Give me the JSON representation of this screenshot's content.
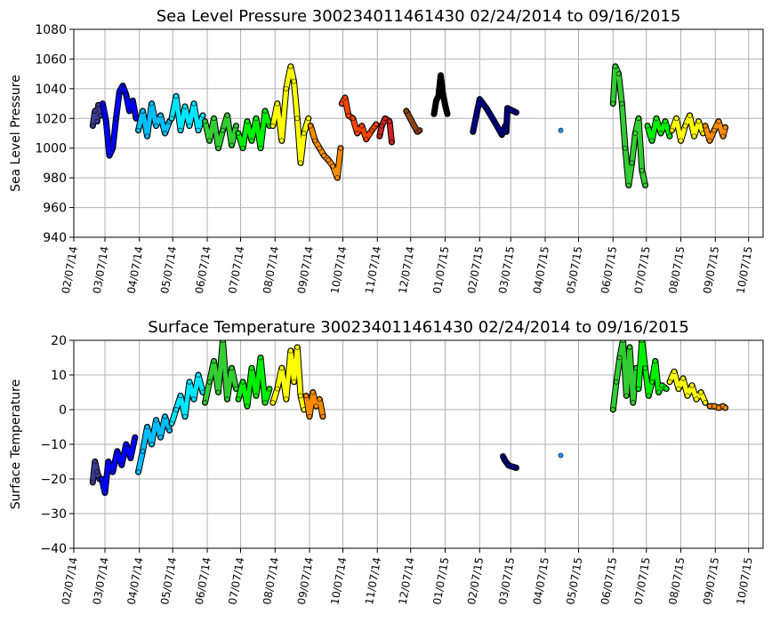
{
  "chart_data": [
    {
      "type": "scatter",
      "title": "Sea Level Pressure 300234011461430  02/24/2014 to 09/16/2015",
      "xlabel": "",
      "ylabel": "Sea Level Pressure",
      "ylim": [
        940,
        1080
      ],
      "yticks": [
        940,
        960,
        980,
        1000,
        1020,
        1040,
        1060,
        1080
      ],
      "xticks": [
        "02/07/14",
        "03/07/14",
        "04/07/14",
        "05/07/14",
        "06/07/14",
        "07/07/14",
        "08/07/14",
        "09/07/14",
        "10/07/14",
        "11/07/14",
        "12/07/14",
        "01/07/15",
        "02/07/15",
        "03/07/15",
        "04/07/15",
        "05/07/15",
        "06/07/15",
        "07/07/15",
        "08/07/15",
        "09/07/15",
        "10/07/15"
      ],
      "xlim": [
        "2014-02-07",
        "2015-10-20"
      ],
      "grid": true,
      "series": [
        {
          "color": "#3b3b8f",
          "x": [
            "2014-02-24",
            "2014-02-26",
            "2014-02-28",
            "2014-03-01",
            "2014-03-03"
          ],
          "y": [
            1015,
            1025,
            1018,
            1029,
            1022
          ]
        },
        {
          "color": "#0000ff",
          "x": [
            "2014-03-05",
            "2014-03-08",
            "2014-03-11",
            "2014-03-14",
            "2014-03-17",
            "2014-03-20",
            "2014-03-23",
            "2014-03-26",
            "2014-03-29",
            "2014-04-01",
            "2014-04-04"
          ],
          "y": [
            1030,
            1018,
            995,
            1000,
            1020,
            1038,
            1042,
            1036,
            1025,
            1032,
            1020
          ]
        },
        {
          "color": "#00bfff",
          "x": [
            "2014-04-06",
            "2014-04-10",
            "2014-04-14",
            "2014-04-18",
            "2014-04-22",
            "2014-04-26",
            "2014-04-30",
            "2014-05-04"
          ],
          "y": [
            1012,
            1025,
            1008,
            1030,
            1015,
            1022,
            1010,
            1018
          ]
        },
        {
          "color": "#00e5ff",
          "x": [
            "2014-05-06",
            "2014-05-10",
            "2014-05-14",
            "2014-05-18",
            "2014-05-22",
            "2014-05-26",
            "2014-05-30",
            "2014-06-03"
          ],
          "y": [
            1020,
            1035,
            1012,
            1028,
            1015,
            1030,
            1012,
            1022
          ]
        },
        {
          "color": "#32cd32",
          "x": [
            "2014-06-05",
            "2014-06-09",
            "2014-06-13",
            "2014-06-17",
            "2014-06-21",
            "2014-06-25",
            "2014-06-29",
            "2014-07-03"
          ],
          "y": [
            1018,
            1005,
            1020,
            1000,
            1012,
            1022,
            1002,
            1015
          ]
        },
        {
          "color": "#00ee00",
          "x": [
            "2014-07-05",
            "2014-07-09",
            "2014-07-13",
            "2014-07-17",
            "2014-07-21",
            "2014-07-25",
            "2014-07-29",
            "2014-08-02"
          ],
          "y": [
            1010,
            1000,
            1018,
            1005,
            1020,
            1000,
            1025,
            1015
          ]
        },
        {
          "color": "#ffff00",
          "x": [
            "2014-08-05",
            "2014-08-09",
            "2014-08-13",
            "2014-08-17",
            "2014-08-21",
            "2014-08-24",
            "2014-08-27",
            "2014-08-30",
            "2014-09-02",
            "2014-09-06"
          ],
          "y": [
            1015,
            1030,
            1005,
            1040,
            1055,
            1045,
            1020,
            990,
            1010,
            1020
          ]
        },
        {
          "color": "#ff8c00",
          "x": [
            "2014-09-08",
            "2014-09-12",
            "2014-09-16",
            "2014-09-20",
            "2014-09-24",
            "2014-09-28",
            "2014-10-02",
            "2014-10-05"
          ],
          "y": [
            1015,
            1005,
            1000,
            995,
            992,
            988,
            980,
            1000
          ]
        },
        {
          "color": "#ff4500",
          "x": [
            "2014-10-06",
            "2014-10-09",
            "2014-10-12",
            "2014-10-16",
            "2014-10-20",
            "2014-10-24",
            "2014-10-28",
            "2014-11-02",
            "2014-11-06"
          ],
          "y": [
            1030,
            1034,
            1022,
            1020,
            1010,
            1015,
            1006,
            1012,
            1016
          ]
        },
        {
          "color": "#cc2222",
          "x": [
            "2014-11-09",
            "2014-11-11",
            "2014-11-14",
            "2014-11-18",
            "2014-11-20"
          ],
          "y": [
            1008,
            1015,
            1020,
            1018,
            1004
          ]
        },
        {
          "color": "#8b4513",
          "x": [
            "2014-12-03",
            "2014-12-13",
            "2014-12-15"
          ],
          "y": [
            1025,
            1011,
            1012
          ]
        },
        {
          "color": "#000000",
          "x": [
            "2014-12-28",
            "2014-12-30",
            "2015-01-01",
            "2015-01-03",
            "2015-01-05",
            "2015-01-07",
            "2015-01-09"
          ],
          "y": [
            1023,
            1032,
            1035,
            1049,
            1037,
            1029,
            1023
          ]
        },
        {
          "color": "#000080",
          "x": [
            "2015-02-01",
            "2015-02-07",
            "2015-02-13",
            "2015-02-21",
            "2015-02-27",
            "2015-03-02",
            "2015-03-03",
            "2015-03-04",
            "2015-03-12"
          ],
          "y": [
            1011,
            1033,
            1027,
            1017,
            1009,
            1015,
            1011,
            1027,
            1024
          ]
        },
        {
          "color": "#1e90ff",
          "x": [
            "2015-04-21"
          ],
          "y": [
            1012
          ]
        },
        {
          "color": "#32cd32",
          "x": [
            "2015-06-07",
            "2015-06-09",
            "2015-06-12",
            "2015-06-15",
            "2015-06-18",
            "2015-06-21",
            "2015-06-24",
            "2015-06-27",
            "2015-06-30",
            "2015-07-03",
            "2015-07-06"
          ],
          "y": [
            1030,
            1055,
            1050,
            1030,
            1000,
            975,
            990,
            1010,
            1020,
            985,
            975
          ]
        },
        {
          "color": "#00ee00",
          "x": [
            "2015-07-08",
            "2015-07-12",
            "2015-07-16",
            "2015-07-20",
            "2015-07-24",
            "2015-07-28"
          ],
          "y": [
            1015,
            1005,
            1020,
            1010,
            1018,
            1008
          ]
        },
        {
          "color": "#ffff00",
          "x": [
            "2015-07-30",
            "2015-08-03",
            "2015-08-07",
            "2015-08-11",
            "2015-08-15",
            "2015-08-19",
            "2015-08-23",
            "2015-08-27"
          ],
          "y": [
            1012,
            1020,
            1005,
            1015,
            1022,
            1008,
            1018,
            1010
          ]
        },
        {
          "color": "#ff8c00",
          "x": [
            "2015-08-29",
            "2015-09-02",
            "2015-09-06",
            "2015-09-10",
            "2015-09-14",
            "2015-09-16"
          ],
          "y": [
            1015,
            1005,
            1012,
            1018,
            1008,
            1014
          ]
        }
      ]
    },
    {
      "type": "scatter",
      "title": "Surface Temperature 300234011461430  02/24/2014 to 09/16/2015",
      "xlabel": "",
      "ylabel": "Surface Temperature",
      "ylim": [
        -40,
        20
      ],
      "yticks": [
        -40,
        -30,
        -20,
        -10,
        0,
        10,
        20
      ],
      "ytick_labels": [
        "−40",
        "−30",
        "−20",
        "−10",
        "0",
        "10",
        "20"
      ],
      "xticks": [
        "02/07/14",
        "03/07/14",
        "04/07/14",
        "05/07/14",
        "06/07/14",
        "07/07/14",
        "08/07/14",
        "09/07/14",
        "10/07/14",
        "11/07/14",
        "12/07/14",
        "01/07/15",
        "02/07/15",
        "03/07/15",
        "04/07/15",
        "05/07/15",
        "06/07/15",
        "07/07/15",
        "08/07/15",
        "09/07/15",
        "10/07/15"
      ],
      "xlim": [
        "2014-02-07",
        "2015-10-20"
      ],
      "grid": true,
      "series": [
        {
          "color": "#3b3b8f",
          "x": [
            "2014-02-24",
            "2014-02-26",
            "2014-02-28",
            "2014-03-02"
          ],
          "y": [
            -21,
            -15,
            -18,
            -20
          ]
        },
        {
          "color": "#0000ff",
          "x": [
            "2014-03-04",
            "2014-03-07",
            "2014-03-10",
            "2014-03-14",
            "2014-03-18",
            "2014-03-22",
            "2014-03-26",
            "2014-03-30",
            "2014-04-03"
          ],
          "y": [
            -20,
            -24,
            -15,
            -18,
            -12,
            -16,
            -10,
            -14,
            -8
          ]
        },
        {
          "color": "#00bfff",
          "x": [
            "2014-04-06",
            "2014-04-10",
            "2014-04-14",
            "2014-04-18",
            "2014-04-22",
            "2014-04-26",
            "2014-04-30",
            "2014-05-04"
          ],
          "y": [
            -18,
            -12,
            -5,
            -10,
            -3,
            -8,
            -2,
            -6
          ]
        },
        {
          "color": "#00e5ff",
          "x": [
            "2014-05-06",
            "2014-05-10",
            "2014-05-14",
            "2014-05-18",
            "2014-05-22",
            "2014-05-26",
            "2014-05-30",
            "2014-06-03"
          ],
          "y": [
            -4,
            0,
            4,
            -2,
            8,
            3,
            10,
            5
          ]
        },
        {
          "color": "#32cd32",
          "x": [
            "2014-06-05",
            "2014-06-09",
            "2014-06-13",
            "2014-06-17",
            "2014-06-21",
            "2014-06-25",
            "2014-06-29",
            "2014-07-03"
          ],
          "y": [
            2,
            8,
            14,
            5,
            20,
            3,
            12,
            6
          ]
        },
        {
          "color": "#00ee00",
          "x": [
            "2014-07-05",
            "2014-07-09",
            "2014-07-13",
            "2014-07-17",
            "2014-07-21",
            "2014-07-25",
            "2014-07-29",
            "2014-08-02"
          ],
          "y": [
            3,
            8,
            1,
            12,
            4,
            15,
            2,
            6
          ]
        },
        {
          "color": "#ffff00",
          "x": [
            "2014-08-05",
            "2014-08-09",
            "2014-08-13",
            "2014-08-17",
            "2014-08-21",
            "2014-08-24",
            "2014-08-27",
            "2014-08-30",
            "2014-09-02"
          ],
          "y": [
            2,
            6,
            12,
            3,
            17,
            8,
            18,
            4,
            0
          ]
        },
        {
          "color": "#ff8c00",
          "x": [
            "2014-09-04",
            "2014-09-07",
            "2014-09-10",
            "2014-09-13",
            "2014-09-16",
            "2014-09-19"
          ],
          "y": [
            4,
            -2,
            5,
            1,
            3,
            -2
          ]
        },
        {
          "color": "#000080",
          "x": [
            "2015-02-28",
            "2015-03-02",
            "2015-03-04",
            "2015-03-05",
            "2015-03-12"
          ],
          "y": [
            -13.5,
            -14.8,
            -15.6,
            -16.1,
            -16.8
          ]
        },
        {
          "color": "#1e90ff",
          "x": [
            "2015-04-21"
          ],
          "y": [
            -13.2
          ]
        },
        {
          "color": "#32cd32",
          "x": [
            "2015-06-07",
            "2015-06-10",
            "2015-06-13",
            "2015-06-16",
            "2015-06-19",
            "2015-06-22",
            "2015-06-25",
            "2015-06-28"
          ],
          "y": [
            0,
            8,
            15,
            20,
            4,
            18,
            2,
            12
          ]
        },
        {
          "color": "#00ee00",
          "x": [
            "2015-06-30",
            "2015-07-03",
            "2015-07-06",
            "2015-07-09",
            "2015-07-12",
            "2015-07-15",
            "2015-07-18",
            "2015-07-21",
            "2015-07-25"
          ],
          "y": [
            6,
            20,
            12,
            4,
            8,
            14,
            5,
            7,
            6
          ]
        },
        {
          "color": "#ffff00",
          "x": [
            "2015-07-28",
            "2015-08-01",
            "2015-08-05",
            "2015-08-09",
            "2015-08-13",
            "2015-08-17",
            "2015-08-21",
            "2015-08-25",
            "2015-08-29"
          ],
          "y": [
            8,
            11,
            6,
            9,
            4,
            7,
            3,
            5,
            2
          ]
        },
        {
          "color": "#ff8c00",
          "x": [
            "2015-09-02",
            "2015-09-06",
            "2015-09-10",
            "2015-09-14",
            "2015-09-16"
          ],
          "y": [
            1,
            1,
            0.5,
            1,
            0.5
          ]
        }
      ]
    }
  ]
}
